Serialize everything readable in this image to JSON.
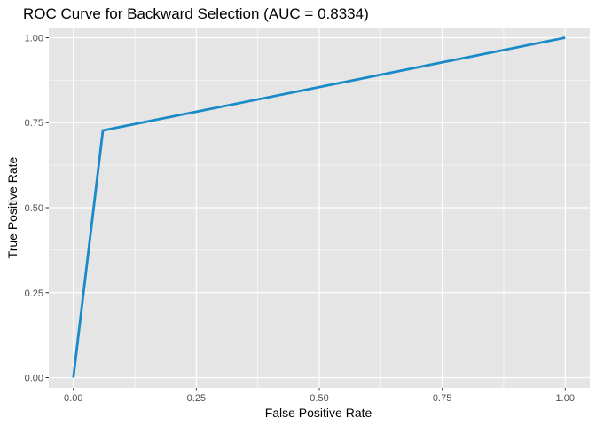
{
  "chart_data": {
    "type": "line",
    "title": "ROC Curve for Backward Selection (AUC = 0.8334)",
    "xlabel": "False Positive Rate",
    "ylabel": "True Positive Rate",
    "xlim": [
      -0.05,
      1.05
    ],
    "ylim": [
      -0.03,
      1.03
    ],
    "x_ticks": [
      0,
      0.25,
      0.5,
      0.75,
      1
    ],
    "x_tick_labels": [
      "0.00",
      "0.25",
      "0.50",
      "0.75",
      "1.00"
    ],
    "y_ticks": [
      0,
      0.25,
      0.5,
      0.75,
      1
    ],
    "y_tick_labels": [
      "0.00",
      "0.25",
      "0.50",
      "0.75",
      "1.00"
    ],
    "grid": true,
    "legend": "none",
    "series": [
      {
        "color": "#1a8ac8",
        "x": [
          0,
          0.06,
          1
        ],
        "y": [
          0,
          0.727,
          1
        ]
      }
    ]
  },
  "colors": {
    "panel_background": "#e5e5e5",
    "grid": "#ffffff"
  }
}
